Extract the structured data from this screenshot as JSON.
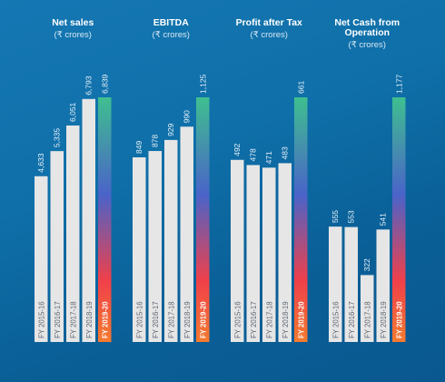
{
  "chart_data": [
    {
      "type": "bar",
      "title": "Net sales",
      "subtitle": "(₹ crores)",
      "categories": [
        "FY 2015-16",
        "FY 2016-17",
        "FY 2017-18",
        "FY 2018-19",
        "FY 2019-20"
      ],
      "values": [
        4633,
        5335,
        6051,
        6793,
        6839
      ],
      "value_labels": [
        "4,633",
        "5,335",
        "6,051",
        "6,793",
        "6,839"
      ],
      "highlight_index": 4
    },
    {
      "type": "bar",
      "title": "EBITDA",
      "subtitle": "(₹ crores)",
      "categories": [
        "FY 2015-16",
        "FY 2016-17",
        "FY 2017-18",
        "FY 2018-19",
        "FY 2019-20"
      ],
      "values": [
        849,
        878,
        929,
        990,
        1125
      ],
      "value_labels": [
        "849",
        "878",
        "929",
        "990",
        "1,125"
      ],
      "highlight_index": 4
    },
    {
      "type": "bar",
      "title": "Profit after Tax",
      "subtitle": "(₹ crores)",
      "categories": [
        "FY 2015-16",
        "FY 2016-17",
        "FY 2017-18",
        "FY 2018-19",
        "FY 2019-20"
      ],
      "values": [
        492,
        478,
        471,
        483,
        661
      ],
      "value_labels": [
        "492",
        "478",
        "471",
        "483",
        "661"
      ],
      "highlight_index": 4
    },
    {
      "type": "bar",
      "title": "Net Cash from Operation",
      "title_lines": [
        "Net Cash from",
        "Operation"
      ],
      "subtitle": "(₹ crores)",
      "categories": [
        "FY 2015-16",
        "FY 2016-17",
        "FY 2017-18",
        "FY 2018-19",
        "FY 2019-20"
      ],
      "values": [
        555,
        553,
        322,
        541,
        1177
      ],
      "value_labels": [
        "555",
        "553",
        "322",
        "541",
        "1,177"
      ],
      "highlight_index": 4
    }
  ],
  "colors": {
    "bar": "#e6e6e6",
    "highlight_top": "#3fbf8f",
    "highlight_mid": "#4a63c9",
    "highlight_low": "#f0404a",
    "highlight_bottom": "#f47a2e"
  }
}
